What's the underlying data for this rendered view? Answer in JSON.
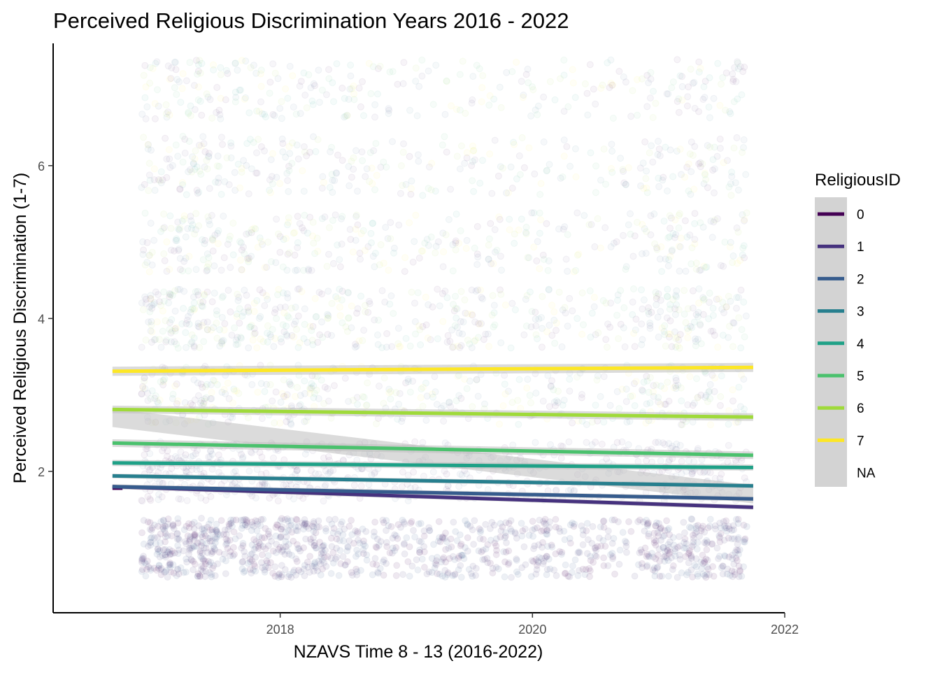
{
  "chart_data": {
    "type": "scatter",
    "title": "Perceived Religious Discrimination Years 2016 - 2022",
    "xlabel": "NZAVS Time 8 - 13 (2016-2022)",
    "ylabel": "Perceived Religious Discrimination (1-7)",
    "xlim": [
      2016.2,
      2022
    ],
    "ylim": [
      0.15,
      7.6
    ],
    "x_ticks": [
      2018,
      2020,
      2022
    ],
    "x_tick_labels": [
      "2018",
      "2020",
      "2022"
    ],
    "y_ticks": [
      2,
      4,
      6
    ],
    "y_tick_labels": [
      "2",
      "4",
      "6"
    ],
    "grid": false,
    "legend": {
      "title": "ReligiousID",
      "placement": "right",
      "entries": [
        "0",
        "1",
        "2",
        "3",
        "4",
        "5",
        "6",
        "7",
        "NA"
      ]
    },
    "observation_waves": [
      {
        "x_range": [
          2016.9,
          2017.5
        ]
      },
      {
        "x_range": [
          2017.5,
          2018.3
        ]
      },
      {
        "x_range": [
          2018.3,
          2019.5
        ]
      },
      {
        "x_range": [
          2019.5,
          2020.9
        ]
      },
      {
        "x_range": [
          2020.9,
          2021.7
        ]
      }
    ],
    "series": [
      {
        "name": "0",
        "color": "#440154",
        "x": [
          2016.67,
          2016.75
        ],
        "y": [
          1.78,
          1.78
        ],
        "se_band": false
      },
      {
        "name": "1",
        "color": "#46327E",
        "x": [
          2016.67,
          2021.75
        ],
        "y": [
          1.8,
          1.53
        ],
        "se_band": true,
        "se": 0.03
      },
      {
        "name": "2",
        "color": "#365C8D",
        "x": [
          2016.67,
          2021.75
        ],
        "y": [
          1.8,
          1.64
        ],
        "se_band": true,
        "se": 0.03
      },
      {
        "name": "3",
        "color": "#277F8E",
        "x": [
          2016.67,
          2021.75
        ],
        "y": [
          1.94,
          1.81
        ],
        "se_band": true,
        "se": 0.03
      },
      {
        "name": "4",
        "color": "#1FA187",
        "x": [
          2016.67,
          2021.75
        ],
        "y": [
          2.11,
          2.05
        ],
        "se_band": true,
        "se": 0.04
      },
      {
        "name": "5",
        "color": "#4AC16D",
        "x": [
          2016.67,
          2021.75
        ],
        "y": [
          2.37,
          2.21
        ],
        "se_band": true,
        "se": 0.05
      },
      {
        "name": "6",
        "color": "#9FDA3A",
        "x": [
          2016.67,
          2021.75
        ],
        "y": [
          2.81,
          2.71
        ],
        "se_band": true,
        "se": 0.05
      },
      {
        "name": "7",
        "color": "#FDE725",
        "x": [
          2016.67,
          2021.75
        ],
        "y": [
          3.31,
          3.36
        ],
        "se_band": true,
        "se": 0.06
      },
      {
        "name": "NA",
        "color": "#BEBEBE",
        "x": [
          2016.67,
          2021.75
        ],
        "y": [
          2.7,
          1.7
        ],
        "se_band": true,
        "se": 0.12,
        "line": false
      }
    ]
  }
}
